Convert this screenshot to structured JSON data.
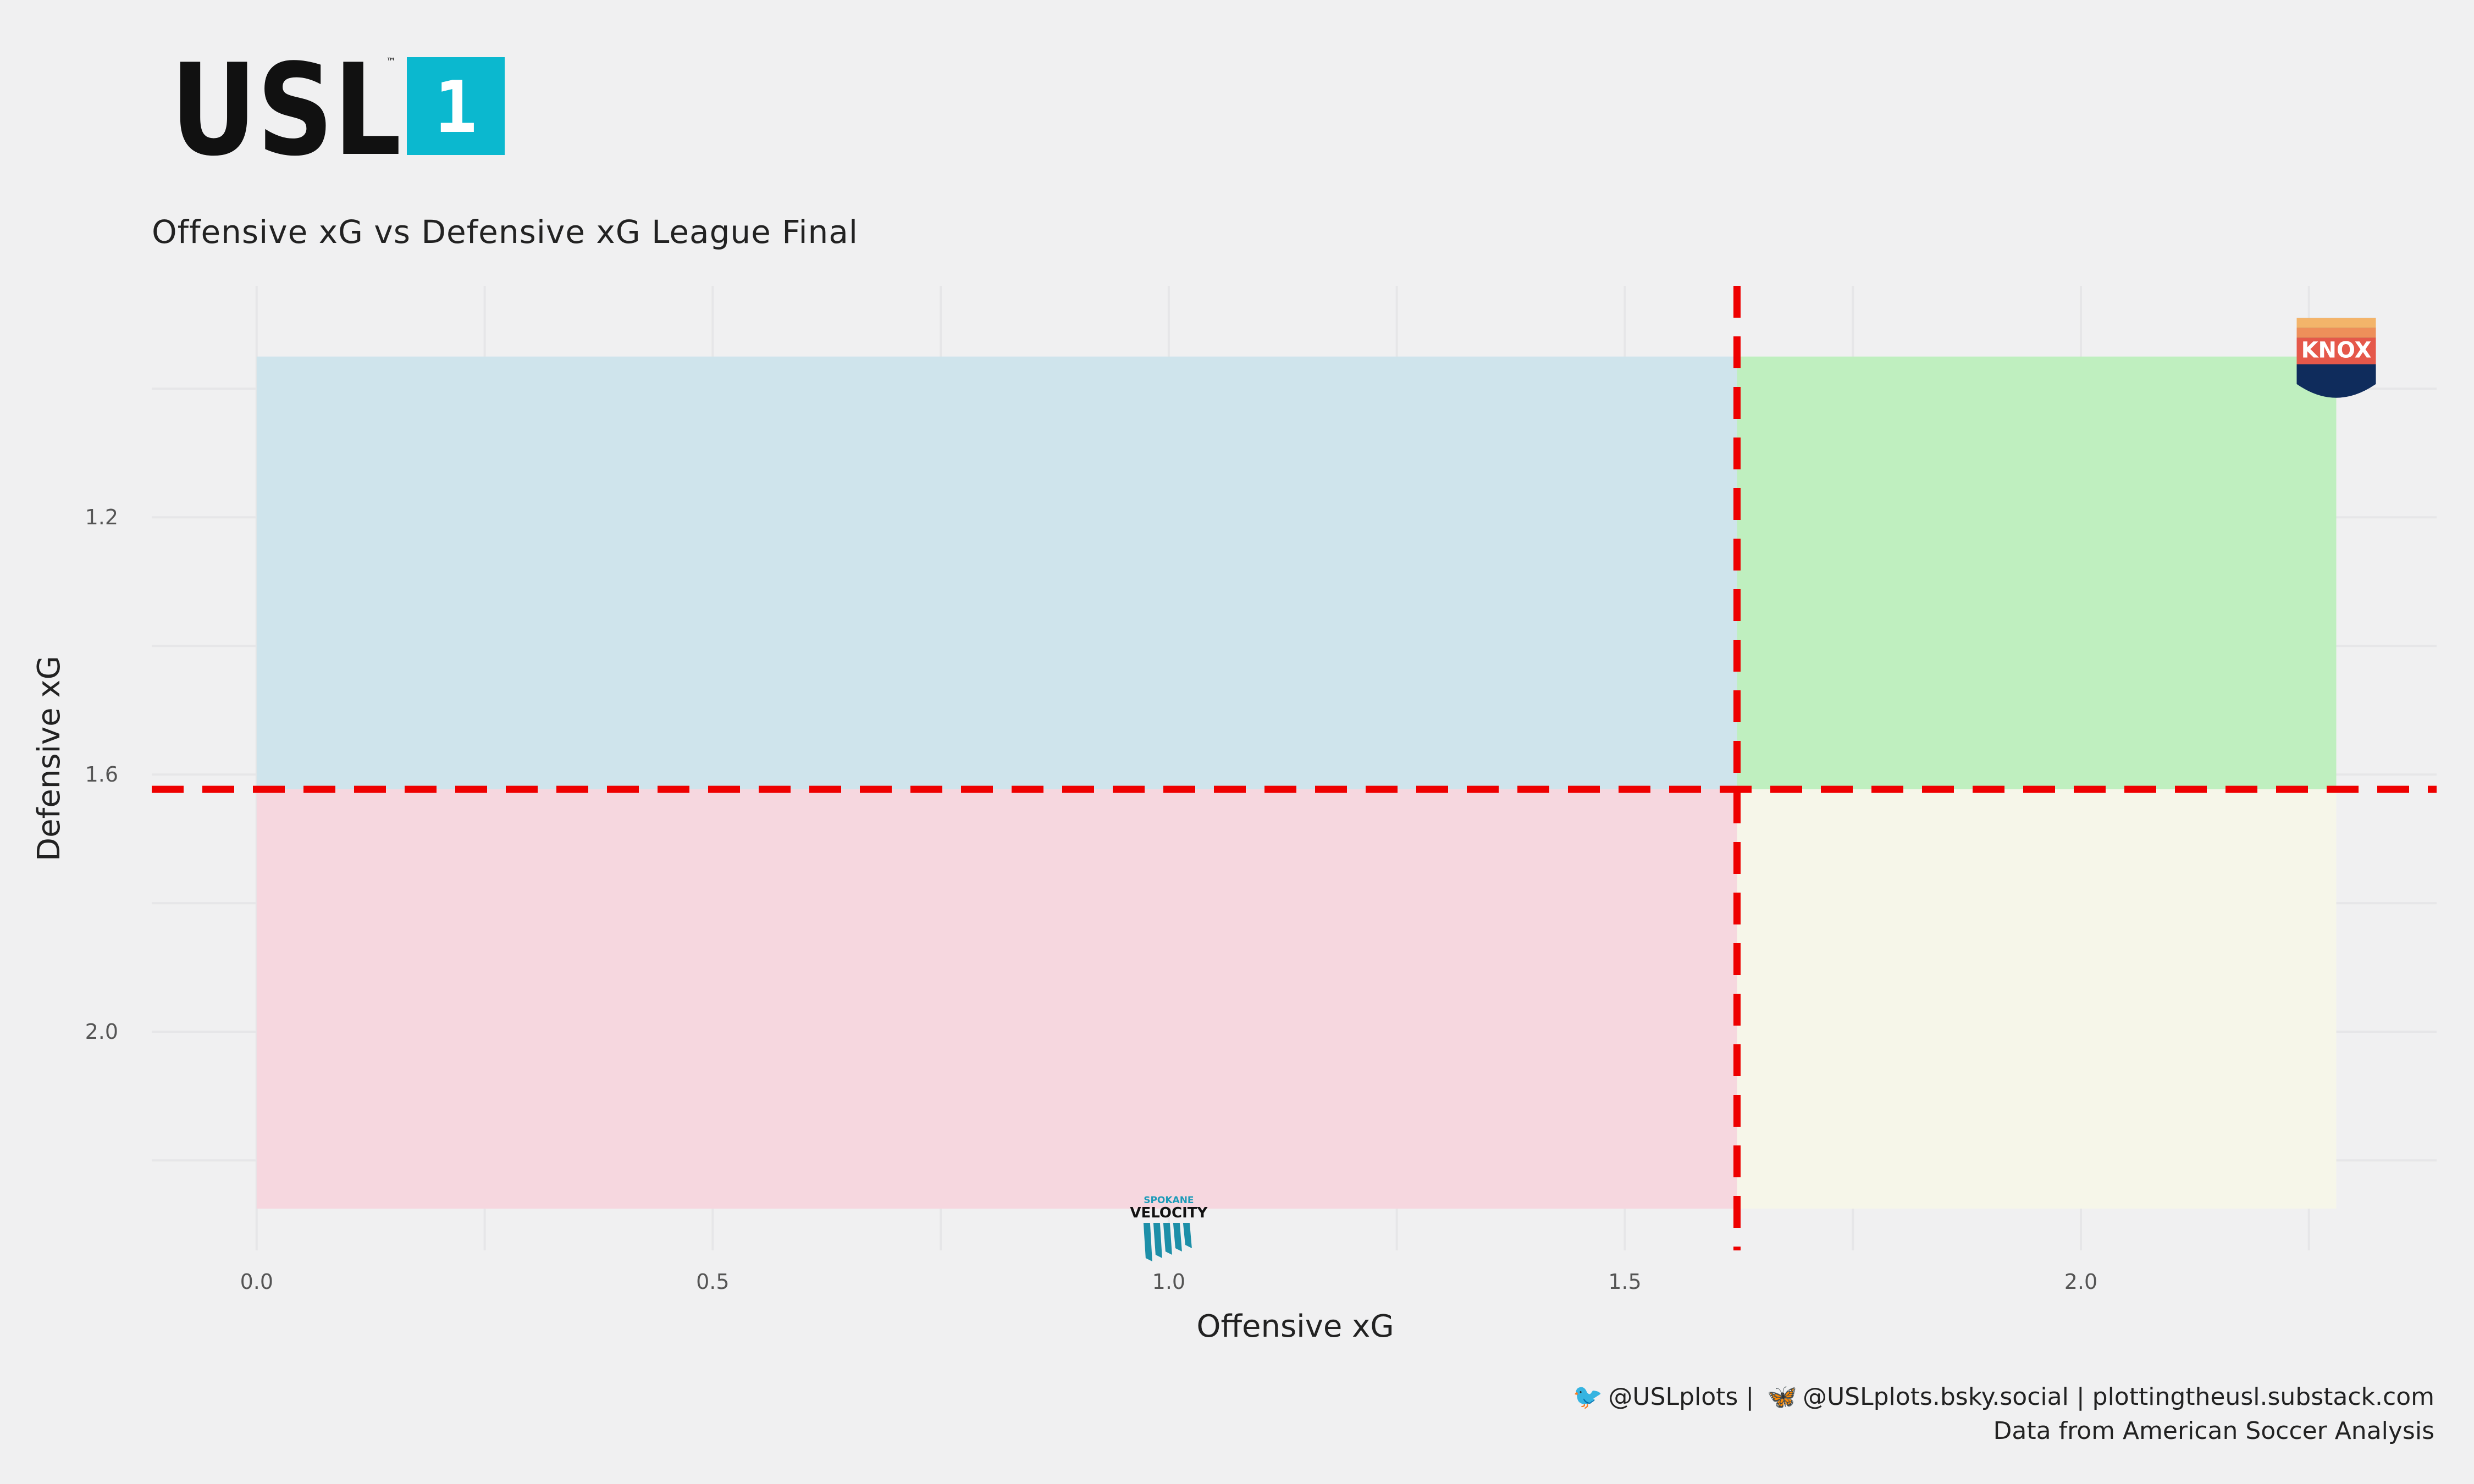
{
  "logo": {
    "text": "USL",
    "tm": "™",
    "badge": "1",
    "badge_color": "#0bb8cf"
  },
  "title": "Offensive xG vs Defensive xG League Final",
  "caption": {
    "twitter_icon": "twitter-bird-icon",
    "twitter": "@USLplots",
    "sep1": "|",
    "bluesky_icon": "butterfly-icon",
    "bluesky": "@USLplots.bsky.social",
    "sep2": "|",
    "site": "plottingtheusl.substack.com",
    "source": "Data from American Soccer Analysis"
  },
  "chart_data": {
    "type": "scatter",
    "title": "Offensive xG vs Defensive xG League Final",
    "xlabel": "Offensive xG",
    "ylabel": "Defensive xG",
    "xlim": [
      -0.115,
      2.39
    ],
    "ylim": [
      2.34,
      0.84
    ],
    "y_reversed": true,
    "x_ticks": [
      "0.0",
      "0.5",
      "1.0",
      "1.5",
      "2.0"
    ],
    "x_tick_values": [
      0.0,
      0.5,
      1.0,
      1.5,
      2.0
    ],
    "y_ticks": [
      "1.2",
      "1.6",
      "2.0"
    ],
    "y_tick_values": [
      1.2,
      1.6,
      2.0
    ],
    "grid": true,
    "reference_lines": {
      "x": 1.623,
      "y": 1.623,
      "color": "#ee0000",
      "style": "dashed"
    },
    "quadrants": [
      {
        "x": [
          0.0,
          1.623
        ],
        "y": [
          0.95,
          1.623
        ],
        "color": "#cfe4ec"
      },
      {
        "x": [
          1.623,
          2.28
        ],
        "y": [
          0.95,
          1.623
        ],
        "color": "#bfefbf"
      },
      {
        "x": [
          0.0,
          1.623
        ],
        "y": [
          1.623,
          2.275
        ],
        "color": "#f6d7df"
      },
      {
        "x": [
          1.623,
          2.28
        ],
        "y": [
          1.623,
          2.275
        ],
        "color": "#f6f6e9"
      }
    ],
    "points": [
      {
        "team": "Knoxville",
        "logo_text": "KNOX",
        "x": 2.28,
        "y": 0.95
      },
      {
        "team": "Spokane Velocity",
        "logo_text_top": "SPOKANE",
        "logo_text": "VELOCITY",
        "x": 1.0,
        "y": 2.275
      }
    ]
  }
}
